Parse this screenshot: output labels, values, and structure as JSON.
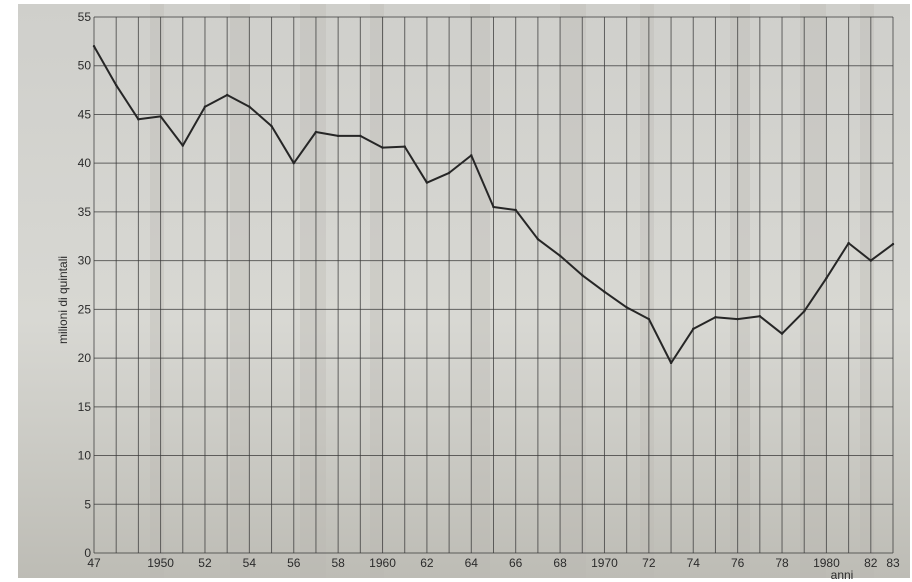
{
  "chart_data": {
    "type": "line",
    "title": "",
    "xlabel": "anni",
    "ylabel": "milioni di quintali",
    "xlim": [
      1947,
      1983
    ],
    "ylim": [
      0,
      55
    ],
    "y_ticks": [
      0,
      5,
      10,
      15,
      20,
      25,
      30,
      35,
      40,
      45,
      50,
      55
    ],
    "x_ticks": [
      {
        "x": 1947,
        "label": "47"
      },
      {
        "x": 1950,
        "label": "1950"
      },
      {
        "x": 1952,
        "label": "52"
      },
      {
        "x": 1954,
        "label": "54"
      },
      {
        "x": 1956,
        "label": "56"
      },
      {
        "x": 1958,
        "label": "58"
      },
      {
        "x": 1960,
        "label": "1960"
      },
      {
        "x": 1962,
        "label": "62"
      },
      {
        "x": 1964,
        "label": "64"
      },
      {
        "x": 1966,
        "label": "66"
      },
      {
        "x": 1968,
        "label": "68"
      },
      {
        "x": 1970,
        "label": "1970"
      },
      {
        "x": 1972,
        "label": "72"
      },
      {
        "x": 1974,
        "label": "74"
      },
      {
        "x": 1976,
        "label": "76"
      },
      {
        "x": 1978,
        "label": "78"
      },
      {
        "x": 1980,
        "label": "1980"
      },
      {
        "x": 1982,
        "label": "82"
      },
      {
        "x": 1983,
        "label": "83"
      }
    ],
    "grid": true,
    "x": [
      1947,
      1948,
      1949,
      1950,
      1951,
      1952,
      1953,
      1954,
      1955,
      1956,
      1957,
      1958,
      1959,
      1960,
      1961,
      1962,
      1963,
      1964,
      1965,
      1966,
      1967,
      1968,
      1969,
      1970,
      1971,
      1972,
      1973,
      1974,
      1975,
      1976,
      1977,
      1978,
      1979,
      1980,
      1981,
      1982,
      1983
    ],
    "series": [
      {
        "values": [
          52,
          48,
          44.5,
          44.8,
          41.8,
          45.8,
          47,
          45.8,
          43.8,
          40,
          43.2,
          42.8,
          42.8,
          41.6,
          41.7,
          38,
          39,
          40.8,
          35.5,
          35.2,
          32.2,
          30.5,
          28.5,
          26.8,
          25.2,
          24,
          19.5,
          23,
          24.2,
          24,
          24.3,
          22.5,
          24.8,
          28.2,
          31.8,
          30,
          31.7
        ]
      }
    ]
  }
}
